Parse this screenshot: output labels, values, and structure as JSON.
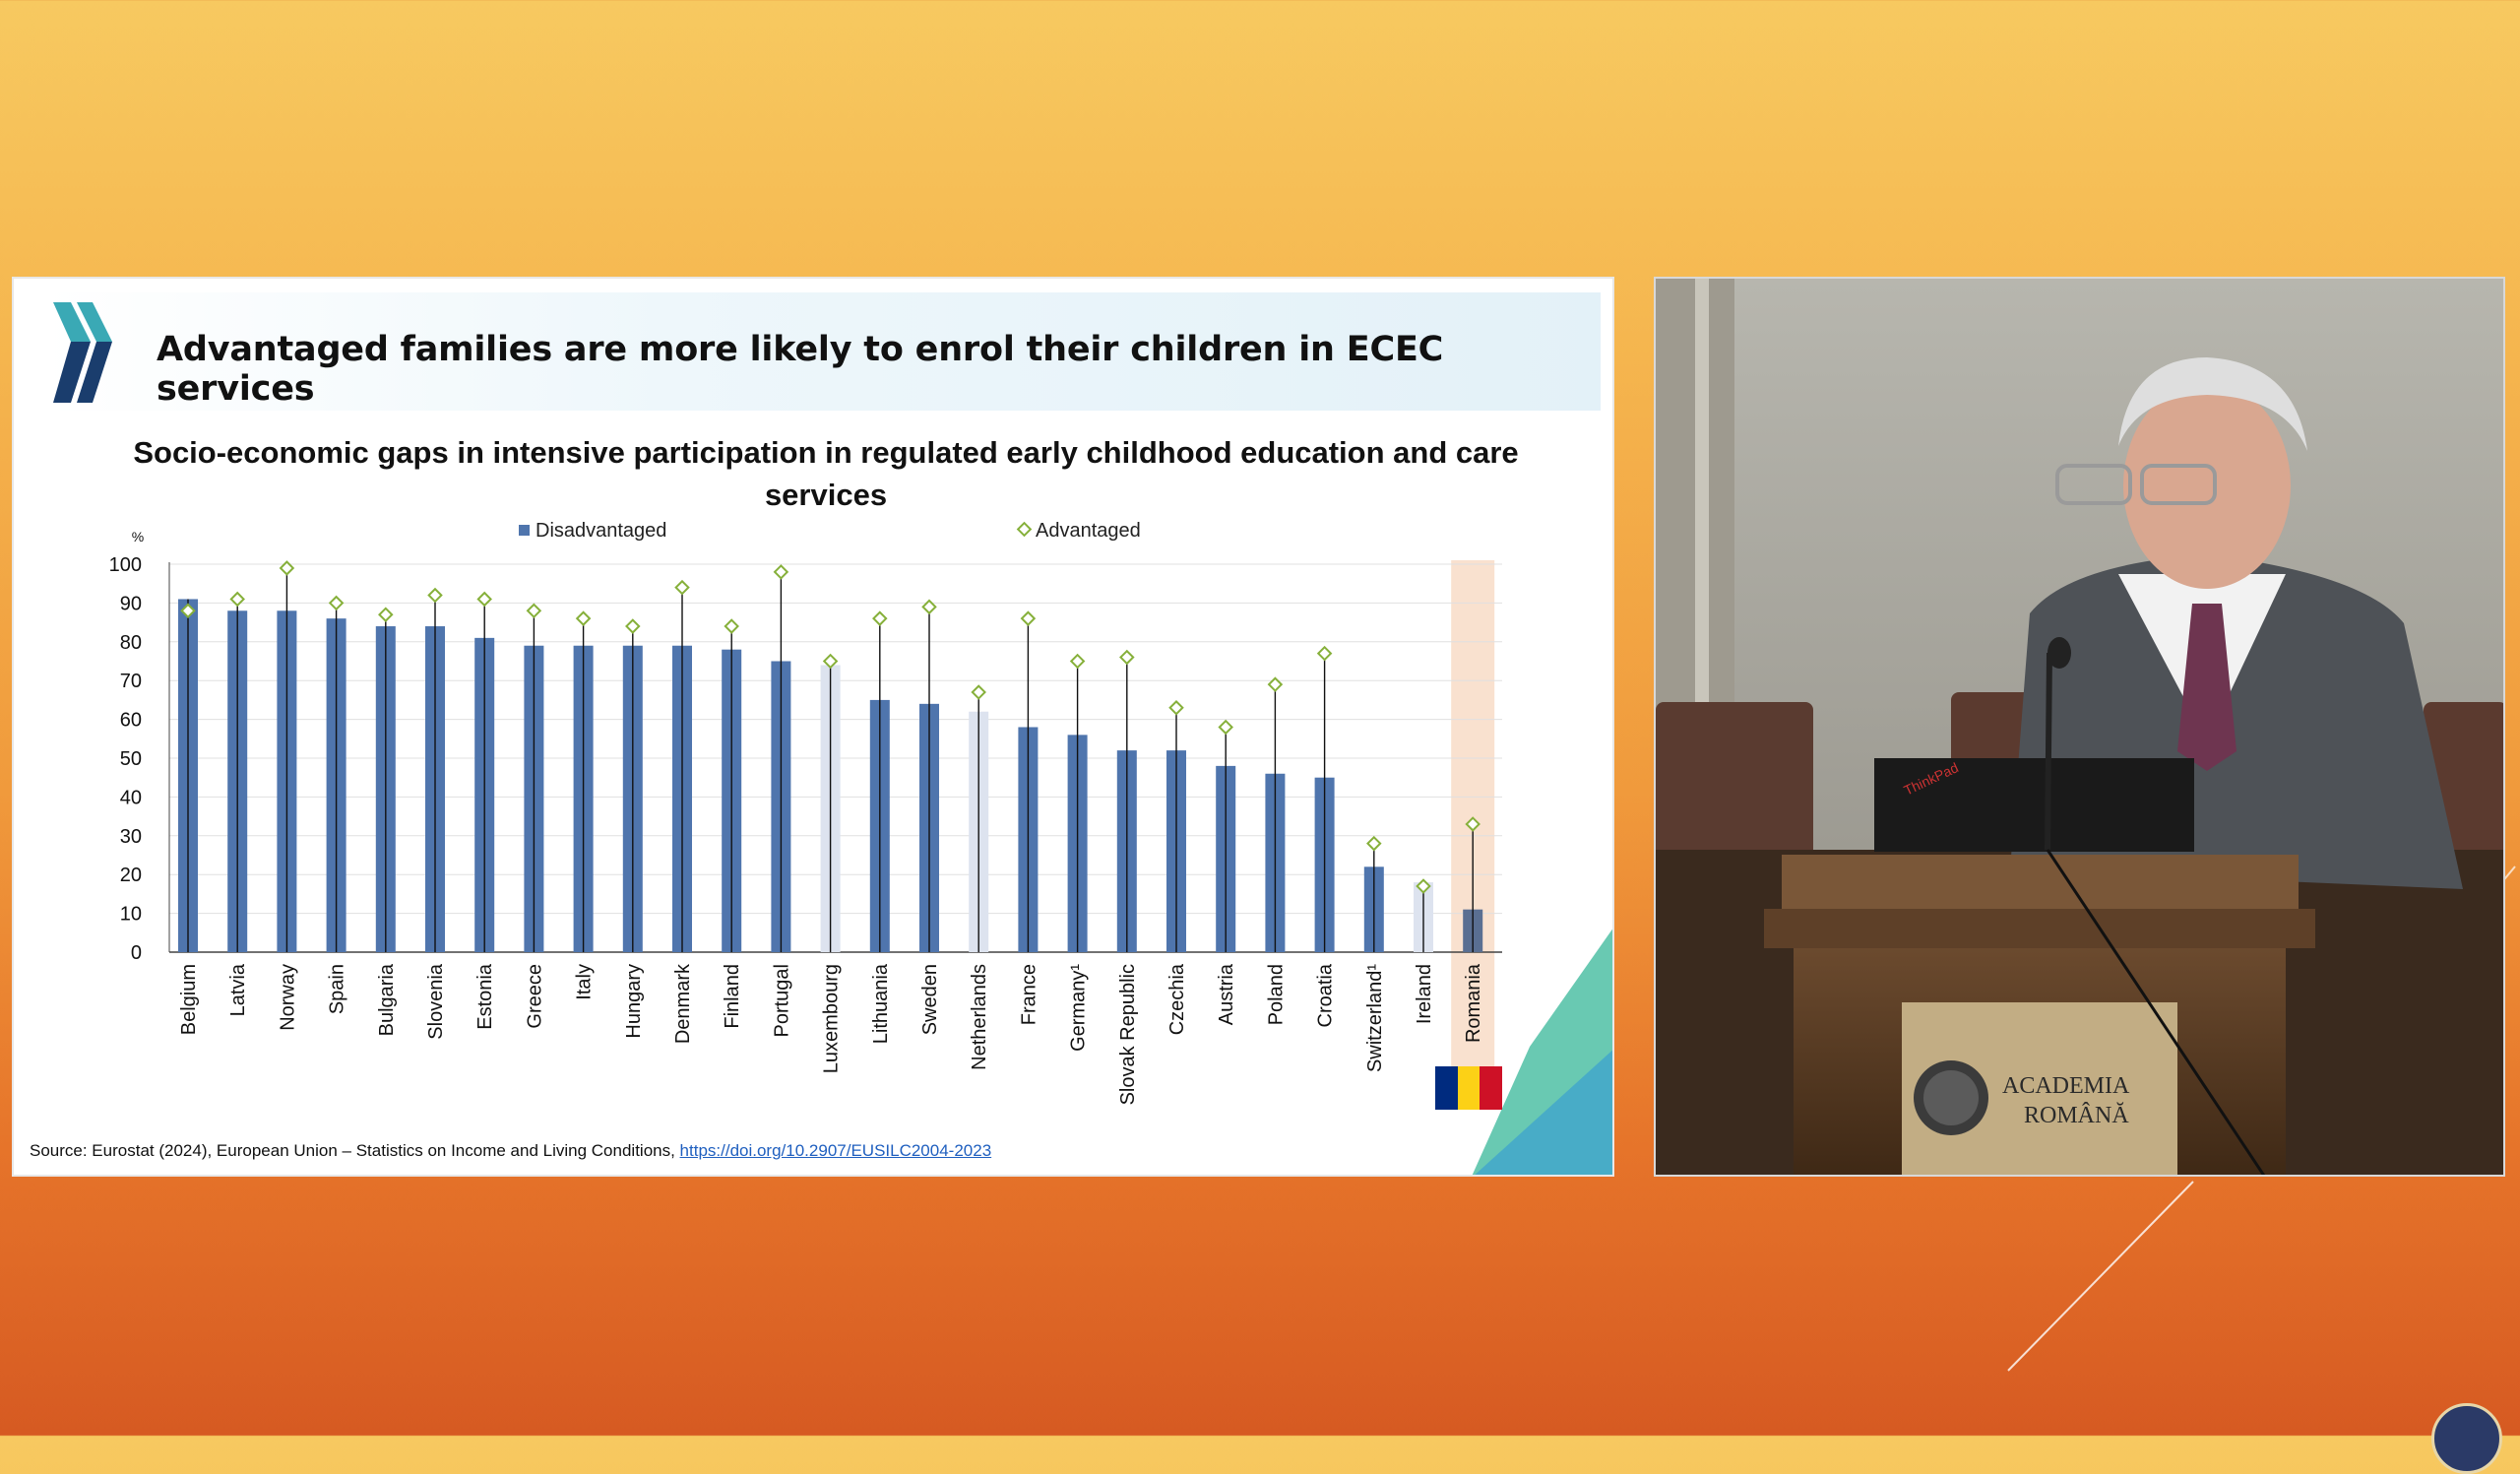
{
  "slide": {
    "title": "Advantaged families are more likely to enrol their children in ECEC services",
    "logo_icon": "oecd-chevron-logo",
    "source_prefix": "Source: Eurostat (2024), European Union – Statistics on Income and Living Conditions, ",
    "source_link": "https://doi.org/10.2907/EUSILC2004-2023",
    "flag_colors": [
      "#002b7f",
      "#fcd116",
      "#ce1126"
    ]
  },
  "chart_data": {
    "type": "bar",
    "title": "Socio-economic gaps in intensive participation in regulated early childhood education and care services",
    "ylabel": "%",
    "ylim": [
      0,
      100
    ],
    "yticks": [
      0,
      10,
      20,
      30,
      40,
      50,
      60,
      70,
      80,
      90,
      100
    ],
    "grid": true,
    "legend": "top-center",
    "categories": [
      "Belgium",
      "Latvia",
      "Norway",
      "Spain",
      "Bulgaria",
      "Slovenia",
      "Estonia",
      "Greece",
      "Italy",
      "Hungary",
      "Denmark",
      "Finland",
      "Portugal",
      "Luxembourg",
      "Lithuania",
      "Sweden",
      "Netherlands",
      "France",
      "Germany¹",
      "Slovak Republic",
      "Czechia",
      "Austria",
      "Poland",
      "Croatia",
      "Switzerland¹",
      "Ireland",
      "Romania"
    ],
    "series": [
      {
        "name": "Disadvantaged",
        "type": "bar",
        "color": "#4f75ad",
        "values": [
          91,
          88,
          88,
          86,
          84,
          84,
          81,
          79,
          79,
          79,
          79,
          78,
          75,
          74,
          65,
          64,
          62,
          58,
          56,
          52,
          52,
          48,
          46,
          45,
          22,
          18,
          11
        ]
      },
      {
        "name": "Advantaged",
        "type": "marker",
        "color": "#86b03a",
        "values": [
          88,
          91,
          99,
          90,
          87,
          92,
          91,
          88,
          86,
          84,
          94,
          84,
          98,
          75,
          86,
          89,
          67,
          86,
          75,
          76,
          63,
          58,
          69,
          77,
          28,
          17,
          33
        ]
      }
    ],
    "faded_categories": [
      "Luxembourg",
      "Netherlands",
      "Ireland"
    ],
    "highlight_category": "Romania"
  },
  "video": {
    "podium_text_line1": "ACADEMIA",
    "podium_text_line2": "ROMÂNĂ",
    "laptop_brand": "ThinkPad"
  }
}
